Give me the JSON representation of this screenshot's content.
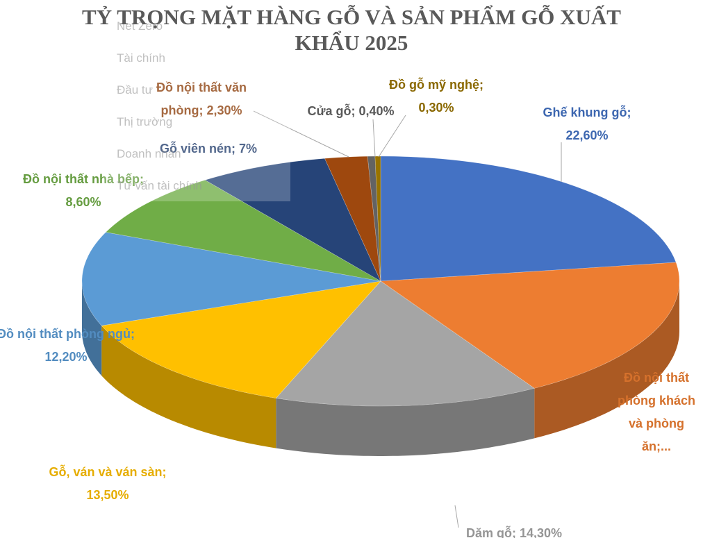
{
  "chart_data": {
    "type": "pie3d",
    "title": "TỶ TRỌNG MẶT HÀNG GỖ VÀ SẢN PHẨM GỖ XUẤT KHẨU 2025",
    "labels": [
      "Ghế khung gỗ; 22,60%",
      "Đồ nội thất phòng khách và phòng ăn;...",
      "Dăm gỗ; 14,30%",
      "Gỗ, ván và ván sàn; 13,50%",
      "Đồ nội thất phòng ngủ; 12,20%",
      "Đồ nội thất nhà bếp; 8,60%",
      "Gỗ viên nén; 7%",
      "Đồ nội thất văn phòng; 2,30%",
      "Cửa gỗ; 0,40%",
      "Đồ gỗ mỹ nghệ; 0,30%"
    ],
    "values": [
      22.6,
      18.8,
      14.3,
      13.5,
      12.2,
      8.6,
      7,
      2.3,
      0.4,
      0.3
    ],
    "colors": [
      "#4472c4",
      "#ed7d31",
      "#a5a5a5",
      "#ffc000",
      "#5b9bd5",
      "#70ad47",
      "#264478",
      "#9e480e",
      "#636363",
      "#997300"
    ]
  },
  "overlay_menu": [
    "Net Zero",
    "Tài chính",
    "Đầu tư",
    "Thị trường",
    "Doanh nhân",
    "Tư vấn tài chính"
  ]
}
